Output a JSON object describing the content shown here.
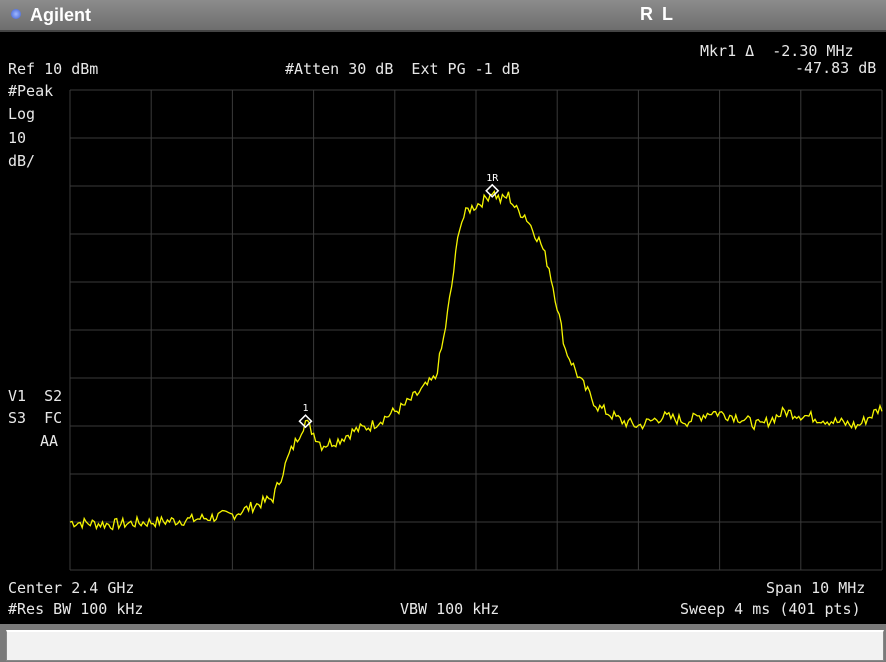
{
  "window": {
    "brand": "Agilent",
    "mode": "R L"
  },
  "marker_readout": {
    "label": "Mkr1 Δ  -2.30 MHz",
    "value": "-47.83 dB"
  },
  "header": {
    "ref": "Ref 10 dBm",
    "atten": "#Atten 30 dB  Ext PG -1 dB"
  },
  "left_panel": {
    "detector": "#Peak",
    "scale_type": "Log",
    "scale_value": "10",
    "scale_unit": "dB/",
    "status_line1": "V1  S2",
    "status_line2": "S3  FC",
    "status_line3": "AA"
  },
  "markers": [
    {
      "label": "1R",
      "freq_offset_mhz": 0.2,
      "level_dbm": -11
    },
    {
      "label": "1",
      "freq_offset_mhz": -2.1,
      "level_dbm": -59
    }
  ],
  "footer": {
    "center": "Center 2.4 GHz",
    "span": "Span 10 MHz",
    "rbw": "#Res BW 100 kHz",
    "vbw": "VBW 100 kHz",
    "sweep": "Sweep 4 ms (401 pts)"
  },
  "colors": {
    "trace": "#f5f500",
    "grid": "#3a3a3a",
    "background": "#000000",
    "text": "#e8e8e8"
  },
  "chart_data": {
    "type": "line",
    "x_unit": "MHz offset from center",
    "y_unit": "dBm",
    "xlim": [
      -5,
      5
    ],
    "ylim": [
      -90,
      10
    ],
    "grid": true,
    "series": [
      {
        "x": [
          -5.0,
          -4.5,
          -4.0,
          -3.5,
          -3.0,
          -2.5,
          -2.3,
          -2.1,
          -1.9,
          -1.7,
          -1.5,
          -1.3,
          -1.1,
          -0.9,
          -0.7,
          -0.5,
          -0.4,
          -0.3,
          -0.2,
          -0.1,
          0.0,
          0.1,
          0.2,
          0.3,
          0.4,
          0.5,
          0.6,
          0.7,
          0.8,
          0.9,
          1.0,
          1.1,
          1.3,
          1.5,
          1.8,
          2.0,
          2.3,
          2.6,
          2.9,
          3.2,
          3.5,
          3.8,
          4.1,
          4.4,
          4.7,
          5.0
        ],
        "y": [
          -80,
          -80.5,
          -80,
          -79.5,
          -78.5,
          -75,
          -66,
          -59,
          -64,
          -63,
          -61,
          -60,
          -58,
          -56,
          -53,
          -50,
          -42,
          -31,
          -18,
          -15,
          -14,
          -13,
          -11,
          -13,
          -12,
          -15,
          -16,
          -19,
          -22,
          -27,
          -35,
          -44,
          -51,
          -56,
          -59,
          -60,
          -58,
          -59,
          -57,
          -58,
          -60,
          -57,
          -58,
          -59,
          -60,
          -56
        ]
      }
    ]
  }
}
